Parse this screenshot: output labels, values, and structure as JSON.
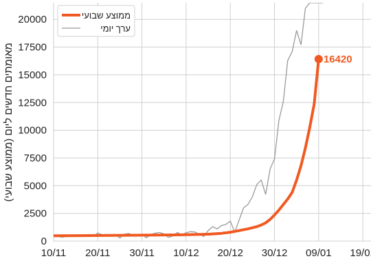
{
  "chart_data": {
    "type": "line",
    "title": "",
    "xlabel": "",
    "ylabel": "מאומתים חדשים ליום (ממוצע שבועי)",
    "x_ticks": [
      "10/11",
      "20/11",
      "30/11",
      "10/12",
      "20/12",
      "30/12",
      "09/01",
      "19/01"
    ],
    "y_ticks": [
      "0",
      "2500",
      "5000",
      "7500",
      "10000",
      "12500",
      "15000",
      "17500",
      "20000"
    ],
    "xlim_days": [
      0,
      72
    ],
    "ylim": [
      0,
      21500
    ],
    "grid": true,
    "legend_position": "top-left",
    "end_label": "16420",
    "series": [
      {
        "name": "ממוצע שבועי",
        "color": "#f05a22",
        "x": [
          0,
          5,
          10,
          15,
          20,
          25,
          30,
          35,
          38,
          40,
          42,
          44,
          45,
          46,
          47,
          48,
          49,
          50,
          51,
          52,
          53,
          54,
          55,
          56,
          57,
          58,
          59,
          60
        ],
        "values": [
          480,
          490,
          500,
          520,
          530,
          550,
          570,
          620,
          700,
          800,
          950,
          1100,
          1200,
          1300,
          1450,
          1650,
          1950,
          2350,
          2800,
          3300,
          3800,
          4400,
          5500,
          6800,
          8400,
          10300,
          12400,
          16420
        ]
      },
      {
        "name": "ערך יומי",
        "color": "#999999",
        "x": [
          0,
          1,
          2,
          3,
          4,
          5,
          6,
          7,
          8,
          9,
          10,
          11,
          12,
          13,
          14,
          15,
          16,
          17,
          18,
          19,
          20,
          21,
          22,
          23,
          24,
          25,
          26,
          27,
          28,
          29,
          30,
          31,
          32,
          33,
          34,
          35,
          36,
          37,
          38,
          39,
          40,
          41,
          42,
          43,
          44,
          45,
          46,
          47,
          48,
          49,
          50,
          51,
          52,
          53,
          54,
          55,
          56,
          57,
          58,
          59,
          60,
          61
        ],
        "values": [
          450,
          420,
          350,
          430,
          500,
          470,
          400,
          440,
          600,
          460,
          730,
          560,
          600,
          500,
          600,
          280,
          620,
          680,
          550,
          520,
          620,
          300,
          580,
          720,
          780,
          640,
          330,
          460,
          780,
          560,
          750,
          850,
          820,
          600,
          420,
          950,
          1300,
          1100,
          1400,
          1500,
          1800,
          800,
          1900,
          3000,
          3300,
          4000,
          5100,
          5500,
          4200,
          6500,
          7400,
          10900,
          12600,
          16300,
          17100,
          19000,
          17700,
          21000,
          21500,
          21500,
          21500,
          21500
        ]
      }
    ]
  }
}
